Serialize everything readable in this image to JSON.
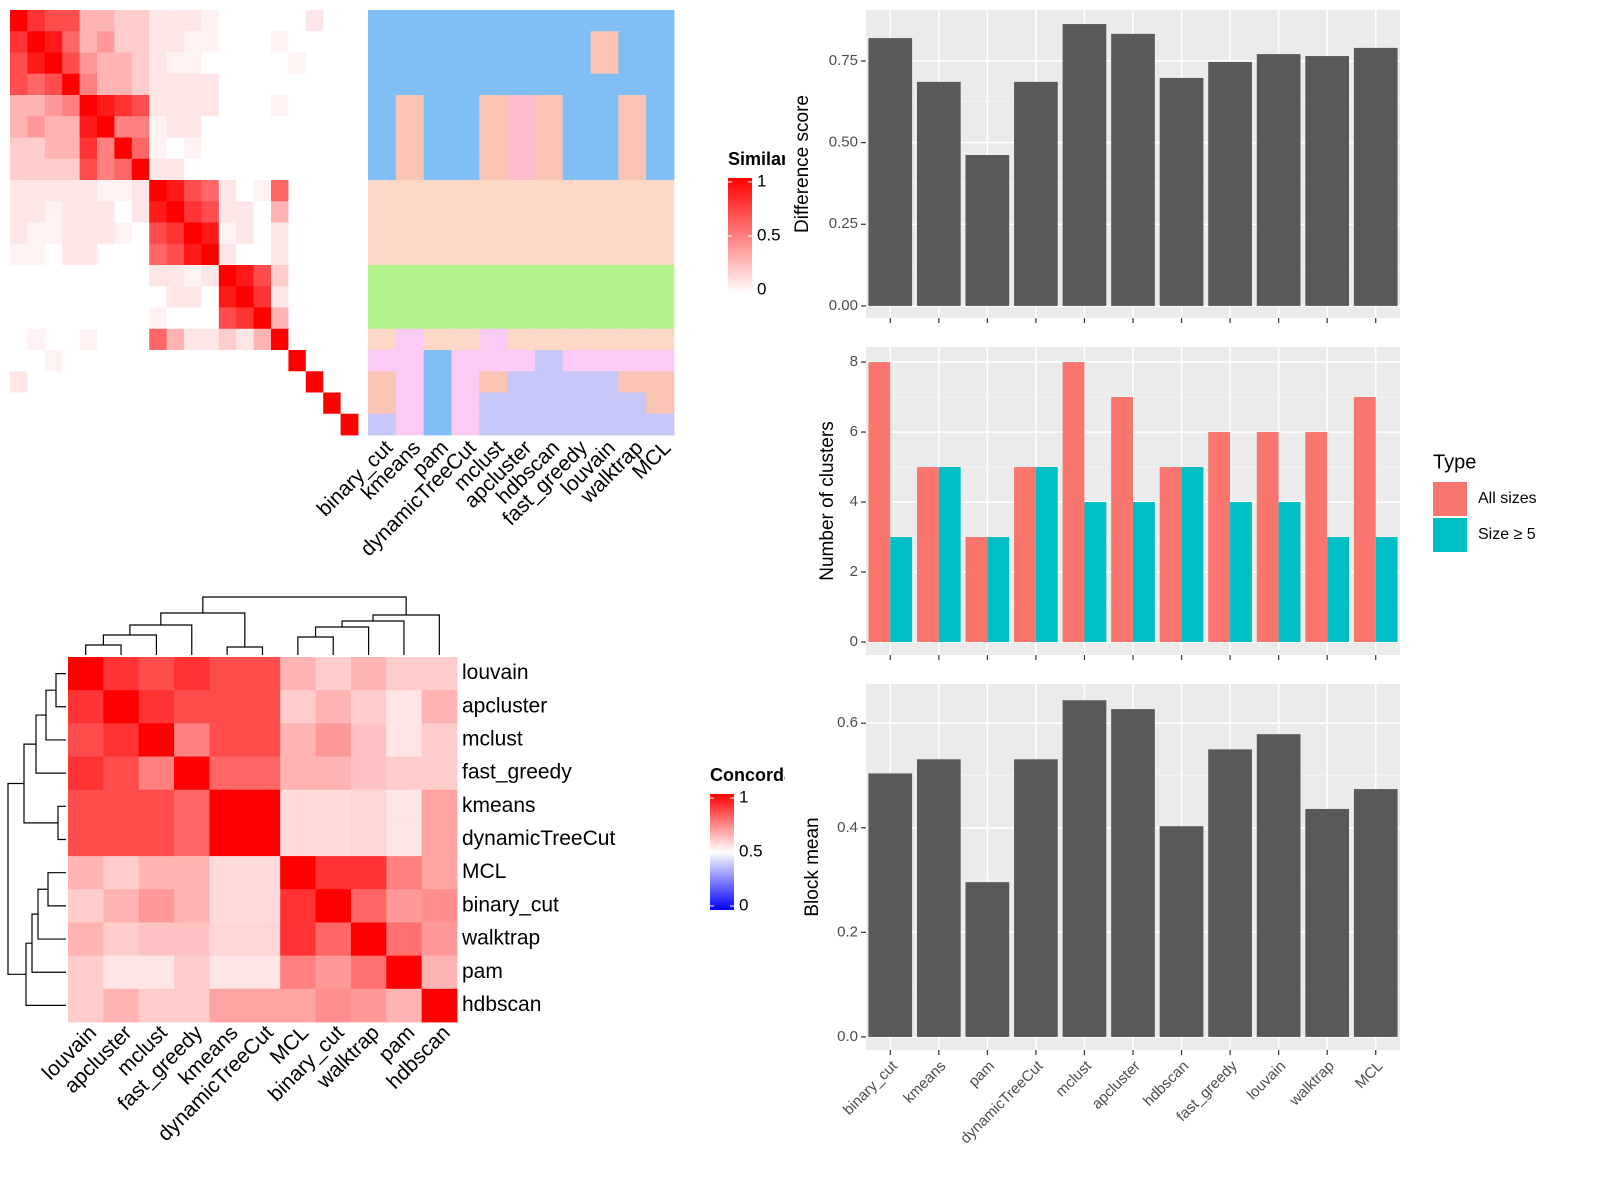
{
  "chart_data": [
    {
      "type": "heatmap",
      "legend_title": "Similarity",
      "colors": [
        "#ffffff",
        "#ff0000"
      ],
      "clim": [
        0,
        1
      ],
      "cticks": [
        0,
        0.5,
        1
      ],
      "values": [
        [
          1,
          0.8,
          0.7,
          0.7,
          0.3,
          0.3,
          0.2,
          0.2,
          0.1,
          0.1,
          0.1,
          0.05,
          0,
          0,
          0,
          0,
          0,
          0.1,
          0,
          0
        ],
        [
          0.8,
          1,
          0.9,
          0.6,
          0.3,
          0.4,
          0.2,
          0.2,
          0.1,
          0.1,
          0.05,
          0.05,
          0,
          0,
          0,
          0.05,
          0,
          0,
          0,
          0
        ],
        [
          0.7,
          0.9,
          1,
          0.7,
          0.4,
          0.3,
          0.3,
          0.2,
          0.1,
          0.05,
          0.05,
          0,
          0,
          0,
          0,
          0,
          0.05,
          0,
          0,
          0
        ],
        [
          0.7,
          0.6,
          0.7,
          1,
          0.5,
          0.3,
          0.3,
          0.2,
          0.1,
          0.1,
          0.1,
          0.1,
          0,
          0,
          0,
          0,
          0,
          0,
          0,
          0
        ],
        [
          0.3,
          0.3,
          0.4,
          0.5,
          1,
          0.9,
          0.8,
          0.7,
          0.1,
          0.1,
          0.1,
          0.1,
          0,
          0,
          0,
          0.05,
          0,
          0,
          0,
          0
        ],
        [
          0.3,
          0.4,
          0.3,
          0.3,
          0.9,
          1,
          0.5,
          0.5,
          0.05,
          0.1,
          0.1,
          0,
          0,
          0,
          0,
          0,
          0,
          0,
          0,
          0
        ],
        [
          0.2,
          0.2,
          0.3,
          0.3,
          0.8,
          0.5,
          1,
          0.6,
          0.05,
          0,
          0.05,
          0,
          0,
          0,
          0,
          0,
          0,
          0,
          0,
          0
        ],
        [
          0.2,
          0.2,
          0.2,
          0.2,
          0.7,
          0.5,
          0.6,
          1,
          0.1,
          0.1,
          0,
          0,
          0,
          0,
          0,
          0,
          0,
          0,
          0,
          0
        ],
        [
          0.1,
          0.1,
          0.1,
          0.1,
          0.1,
          0.05,
          0.05,
          0.1,
          1,
          0.9,
          0.7,
          0.6,
          0.1,
          0,
          0.05,
          0.6,
          0,
          0,
          0,
          0
        ],
        [
          0.1,
          0.1,
          0.05,
          0.1,
          0.1,
          0.1,
          0,
          0.1,
          0.9,
          1,
          0.8,
          0.7,
          0.1,
          0.1,
          0,
          0.3,
          0,
          0,
          0,
          0
        ],
        [
          0.1,
          0.05,
          0.05,
          0.1,
          0.1,
          0.1,
          0.05,
          0,
          0.7,
          0.8,
          1,
          0.9,
          0.05,
          0.1,
          0,
          0.1,
          0,
          0,
          0,
          0
        ],
        [
          0.05,
          0.05,
          0,
          0.1,
          0.1,
          0,
          0,
          0,
          0.6,
          0.7,
          0.9,
          1,
          0.1,
          0,
          0,
          0.1,
          0,
          0,
          0,
          0
        ],
        [
          0,
          0,
          0,
          0,
          0,
          0,
          0,
          0,
          0.1,
          0.1,
          0.05,
          0.1,
          1,
          0.9,
          0.7,
          0.2,
          0,
          0,
          0,
          0
        ],
        [
          0,
          0,
          0,
          0,
          0,
          0,
          0,
          0,
          0,
          0.1,
          0.1,
          0,
          0.9,
          1,
          0.8,
          0.1,
          0,
          0,
          0,
          0
        ],
        [
          0,
          0,
          0,
          0,
          0,
          0,
          0,
          0,
          0.05,
          0,
          0,
          0,
          0.7,
          0.8,
          1,
          0.3,
          0,
          0,
          0,
          0
        ],
        [
          0,
          0.05,
          0,
          0,
          0.05,
          0,
          0,
          0,
          0.6,
          0.3,
          0.1,
          0.1,
          0.2,
          0.1,
          0.3,
          1,
          0,
          0,
          0,
          0
        ],
        [
          0,
          0,
          0.05,
          0,
          0,
          0,
          0,
          0,
          0,
          0,
          0,
          0,
          0,
          0,
          0,
          0,
          1,
          0,
          0,
          0
        ],
        [
          0.1,
          0,
          0,
          0,
          0,
          0,
          0,
          0,
          0,
          0,
          0,
          0,
          0,
          0,
          0,
          0,
          0,
          1,
          0,
          0
        ],
        [
          0,
          0,
          0,
          0,
          0,
          0,
          0,
          0,
          0,
          0,
          0,
          0,
          0,
          0,
          0,
          0,
          0,
          0,
          1,
          0
        ],
        [
          0,
          0,
          0,
          0,
          0,
          0,
          0,
          0,
          0,
          0,
          0,
          0,
          0,
          0,
          0,
          0,
          0,
          0,
          0,
          1
        ]
      ]
    },
    {
      "type": "category-heatmap",
      "columns": [
        "binary_cut",
        "kmeans",
        "pam",
        "dynamicTreeCut",
        "mclust",
        "apcluster",
        "hdbscan",
        "fast_greedy",
        "louvain",
        "walktrap",
        "MCL"
      ],
      "palette": [
        "#7fbff5",
        "#fdd8c6",
        "#b2f38c",
        "#fbcbf5",
        "#c7c6f8",
        "#f9c4b4",
        "#fbbccb"
      ],
      "values": [
        [
          1,
          1,
          1,
          1,
          1,
          1,
          1,
          1,
          1,
          1,
          1
        ],
        [
          1,
          1,
          1,
          1,
          1,
          1,
          1,
          1,
          6,
          1,
          1
        ],
        [
          1,
          1,
          1,
          1,
          1,
          1,
          1,
          1,
          6,
          1,
          1
        ],
        [
          1,
          1,
          1,
          1,
          1,
          1,
          1,
          1,
          1,
          1,
          1
        ],
        [
          1,
          6,
          1,
          1,
          6,
          7,
          6,
          1,
          1,
          6,
          1
        ],
        [
          1,
          6,
          1,
          1,
          6,
          7,
          6,
          1,
          1,
          6,
          1
        ],
        [
          1,
          6,
          1,
          1,
          6,
          7,
          6,
          1,
          1,
          6,
          1
        ],
        [
          1,
          6,
          1,
          1,
          6,
          7,
          6,
          1,
          1,
          6,
          1
        ],
        [
          2,
          2,
          2,
          2,
          2,
          2,
          2,
          2,
          2,
          2,
          2
        ],
        [
          2,
          2,
          2,
          2,
          2,
          2,
          2,
          2,
          2,
          2,
          2
        ],
        [
          2,
          2,
          2,
          2,
          2,
          2,
          2,
          2,
          2,
          2,
          2
        ],
        [
          2,
          2,
          2,
          2,
          2,
          2,
          2,
          2,
          2,
          2,
          2
        ],
        [
          3,
          3,
          3,
          3,
          3,
          3,
          3,
          3,
          3,
          3,
          3
        ],
        [
          3,
          3,
          3,
          3,
          3,
          3,
          3,
          3,
          3,
          3,
          3
        ],
        [
          3,
          3,
          3,
          3,
          3,
          3,
          3,
          3,
          3,
          3,
          3
        ],
        [
          2,
          4,
          2,
          2,
          4,
          2,
          2,
          2,
          2,
          2,
          2
        ],
        [
          4,
          4,
          1,
          4,
          4,
          4,
          5,
          4,
          4,
          4,
          4
        ],
        [
          6,
          4,
          1,
          4,
          6,
          5,
          5,
          5,
          5,
          6,
          6
        ],
        [
          6,
          4,
          1,
          4,
          5,
          5,
          5,
          5,
          5,
          5,
          6
        ],
        [
          5,
          4,
          1,
          4,
          5,
          5,
          5,
          5,
          5,
          5,
          5
        ]
      ]
    },
    {
      "type": "heatmap",
      "legend_title": "Concordance",
      "colors": [
        "#0000ff",
        "#ffffff",
        "#ff0000"
      ],
      "clim": [
        0,
        1
      ],
      "cticks": [
        0,
        0.5,
        1
      ],
      "rows": [
        "louvain",
        "apcluster",
        "mclust",
        "fast_greedy",
        "kmeans",
        "dynamicTreeCut",
        "MCL",
        "binary_cut",
        "walktrap",
        "pam",
        "hdbscan"
      ],
      "columns": [
        "louvain",
        "apcluster",
        "mclust",
        "fast_greedy",
        "kmeans",
        "dynamicTreeCut",
        "MCL",
        "binary_cut",
        "walktrap",
        "pam",
        "hdbscan"
      ],
      "values": [
        [
          1,
          0.9,
          0.85,
          0.9,
          0.85,
          0.85,
          0.65,
          0.6,
          0.65,
          0.6,
          0.6
        ],
        [
          0.9,
          1,
          0.9,
          0.85,
          0.85,
          0.85,
          0.6,
          0.65,
          0.6,
          0.55,
          0.65
        ],
        [
          0.85,
          0.9,
          1,
          0.75,
          0.85,
          0.85,
          0.65,
          0.7,
          0.62,
          0.55,
          0.6
        ],
        [
          0.9,
          0.85,
          0.75,
          1,
          0.8,
          0.8,
          0.65,
          0.65,
          0.62,
          0.6,
          0.6
        ],
        [
          0.85,
          0.85,
          0.85,
          0.8,
          1,
          1,
          0.57,
          0.57,
          0.58,
          0.55,
          0.68
        ],
        [
          0.85,
          0.85,
          0.85,
          0.8,
          1,
          1,
          0.57,
          0.57,
          0.58,
          0.55,
          0.68
        ],
        [
          0.65,
          0.6,
          0.65,
          0.65,
          0.57,
          0.57,
          1,
          0.9,
          0.9,
          0.75,
          0.68
        ],
        [
          0.6,
          0.65,
          0.7,
          0.65,
          0.57,
          0.57,
          0.9,
          1,
          0.8,
          0.7,
          0.72
        ],
        [
          0.65,
          0.6,
          0.62,
          0.62,
          0.58,
          0.58,
          0.9,
          0.8,
          1,
          0.78,
          0.7
        ],
        [
          0.6,
          0.55,
          0.55,
          0.6,
          0.55,
          0.55,
          0.75,
          0.7,
          0.78,
          1,
          0.65
        ],
        [
          0.6,
          0.65,
          0.6,
          0.6,
          0.68,
          0.68,
          0.68,
          0.72,
          0.7,
          0.65,
          1
        ]
      ]
    },
    {
      "type": "bar",
      "ylabel": "Difference score",
      "color": "#595959",
      "values": [
        0.82,
        0.686,
        0.462,
        0.686,
        0.863,
        0.833,
        0.698,
        0.747,
        0.771,
        0.765,
        0.79
      ],
      "ylim": [
        -0.037,
        0.906
      ],
      "yticks": [
        {
          "value": 0,
          "label": "0.00"
        },
        0.25,
        {
          "value": 0.5,
          "label": "0.50"
        },
        0.75
      ]
    },
    {
      "type": "grouped-bar",
      "ylabel": "Number of clusters",
      "legend_title": "Type",
      "legend": "right",
      "series": [
        {
          "name": "All sizes",
          "color": "#f8766d",
          "values": [
            8,
            5,
            3,
            5,
            8,
            7,
            5,
            6,
            6,
            6,
            7
          ]
        },
        {
          "name": "Size ≥ 5",
          "color": "#00bfc4",
          "values": [
            3,
            5,
            3,
            5,
            4,
            4,
            5,
            4,
            4,
            3,
            3
          ]
        }
      ],
      "ylim": [
        -0.37,
        8.43
      ],
      "yticks": [
        0,
        2,
        4,
        6,
        8
      ]
    },
    {
      "type": "bar",
      "ylabel": "Block mean",
      "color": "#595959",
      "categories": [
        "binary_cut",
        "kmeans",
        "pam",
        "dynamicTreeCut",
        "mclust",
        "apcluster",
        "hdbscan",
        "fast_greedy",
        "louvain",
        "walktrap",
        "MCL"
      ],
      "values": [
        0.504,
        0.531,
        0.296,
        0.531,
        0.644,
        0.627,
        0.403,
        0.55,
        0.579,
        0.436,
        0.474
      ],
      "ylim": [
        -0.025,
        0.675
      ],
      "yticks": [
        {
          "value": 0,
          "label": "0.0"
        },
        0.2,
        0.4,
        0.6
      ]
    }
  ]
}
